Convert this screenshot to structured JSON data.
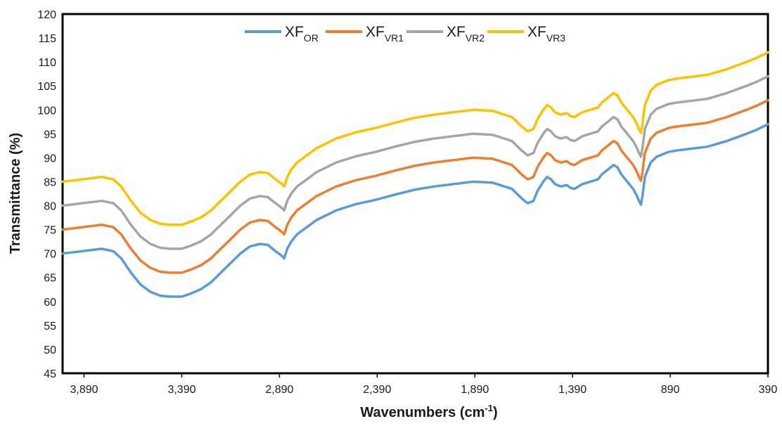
{
  "chart_data": {
    "type": "line",
    "title": "",
    "xlabel": "Wavenumbers (cm",
    "xlabel_sup": "-1",
    "xlabel_end": ")",
    "ylabel": "Transmittance (%)",
    "xlim": [
      4000,
      390
    ],
    "x_reversed": true,
    "ylim": [
      45,
      120
    ],
    "x_ticks": [
      3890,
      3390,
      2890,
      2390,
      1890,
      1390,
      890,
      390
    ],
    "x_tick_labels": [
      "3,890",
      "3,390",
      "2,890",
      "2,390",
      "1,890",
      "1,390",
      "890",
      "390"
    ],
    "y_ticks": [
      45,
      50,
      55,
      60,
      65,
      70,
      75,
      80,
      85,
      90,
      95,
      100,
      105,
      110,
      115,
      120
    ],
    "y_tick_labels": [
      "45",
      "50",
      "55",
      "60",
      "65",
      "70",
      "75",
      "80",
      "85",
      "90",
      "95",
      "100",
      "105",
      "110",
      "115",
      "120"
    ],
    "grid": false,
    "legend_position": "top-center",
    "series": [
      {
        "name": "XF",
        "name_sub": "OR",
        "color": "#5B9BD5",
        "x": [
          4000,
          3900,
          3800,
          3740,
          3700,
          3650,
          3600,
          3550,
          3500,
          3450,
          3390,
          3340,
          3290,
          3240,
          3190,
          3140,
          3090,
          3040,
          2990,
          2950,
          2910,
          2880,
          2866,
          2850,
          2830,
          2800,
          2750,
          2700,
          2600,
          2500,
          2400,
          2300,
          2200,
          2100,
          2000,
          1900,
          1800,
          1700,
          1650,
          1620,
          1590,
          1570,
          1540,
          1520,
          1500,
          1480,
          1450,
          1420,
          1400,
          1380,
          1340,
          1300,
          1260,
          1240,
          1210,
          1180,
          1160,
          1140,
          1120,
          1100,
          1080,
          1060,
          1050,
          1040,
          1032,
          1020,
          990,
          960,
          900,
          860,
          800,
          700,
          600,
          500,
          450,
          390
        ],
        "y": [
          70.0,
          70.5,
          71.0,
          70.5,
          69.0,
          66.0,
          63.5,
          62.0,
          61.2,
          61.0,
          61.0,
          61.7,
          62.6,
          64.0,
          66.0,
          68.0,
          70.0,
          71.5,
          72.0,
          71.8,
          70.5,
          69.6,
          69.0,
          71.0,
          72.5,
          74.0,
          75.5,
          77.0,
          79.0,
          80.3,
          81.2,
          82.3,
          83.3,
          84.0,
          84.5,
          85.0,
          84.8,
          83.5,
          81.5,
          80.5,
          81.0,
          83.0,
          85.0,
          86.0,
          85.5,
          84.5,
          84.0,
          84.3,
          83.7,
          83.5,
          84.5,
          85.0,
          85.5,
          86.5,
          87.5,
          88.5,
          88.0,
          86.5,
          85.5,
          84.5,
          83.5,
          82.0,
          81.0,
          80.2,
          82.0,
          86.0,
          89.0,
          90.2,
          91.2,
          91.5,
          91.8,
          92.3,
          93.5,
          95.0,
          95.8,
          97.0
        ]
      },
      {
        "name": "XF",
        "name_sub": "VR1",
        "color": "#ED7D31",
        "x": [
          4000,
          3900,
          3800,
          3740,
          3700,
          3650,
          3600,
          3550,
          3500,
          3450,
          3390,
          3340,
          3290,
          3240,
          3190,
          3140,
          3090,
          3040,
          2990,
          2950,
          2910,
          2880,
          2866,
          2850,
          2830,
          2800,
          2750,
          2700,
          2600,
          2500,
          2400,
          2300,
          2200,
          2100,
          2000,
          1900,
          1800,
          1700,
          1650,
          1620,
          1590,
          1570,
          1540,
          1520,
          1500,
          1480,
          1450,
          1420,
          1400,
          1380,
          1340,
          1300,
          1260,
          1240,
          1210,
          1180,
          1160,
          1140,
          1120,
          1100,
          1080,
          1060,
          1050,
          1040,
          1032,
          1020,
          990,
          960,
          900,
          860,
          800,
          700,
          600,
          500,
          450,
          390
        ],
        "y": [
          75.0,
          75.5,
          76.0,
          75.5,
          74.0,
          71.0,
          68.5,
          67.0,
          66.2,
          66.0,
          66.0,
          66.7,
          67.6,
          69.0,
          71.0,
          73.0,
          75.0,
          76.5,
          77.0,
          76.8,
          75.5,
          74.6,
          74.0,
          76.0,
          77.5,
          79.0,
          80.5,
          82.0,
          84.0,
          85.3,
          86.2,
          87.3,
          88.3,
          89.0,
          89.5,
          90.0,
          89.8,
          88.5,
          86.5,
          85.5,
          86.0,
          88.0,
          90.0,
          91.0,
          90.5,
          89.5,
          89.0,
          89.3,
          88.7,
          88.5,
          89.5,
          90.0,
          90.5,
          91.5,
          92.5,
          93.5,
          93.0,
          91.5,
          90.5,
          89.5,
          88.5,
          87.0,
          86.0,
          85.2,
          87.0,
          91.0,
          94.0,
          95.2,
          96.2,
          96.5,
          96.8,
          97.3,
          98.5,
          100.0,
          100.8,
          102.0
        ]
      },
      {
        "name": "XF",
        "name_sub": "VR2",
        "color": "#A5A5A5",
        "x": [
          4000,
          3900,
          3800,
          3740,
          3700,
          3650,
          3600,
          3550,
          3500,
          3450,
          3390,
          3340,
          3290,
          3240,
          3190,
          3140,
          3090,
          3040,
          2990,
          2950,
          2910,
          2880,
          2866,
          2850,
          2830,
          2800,
          2750,
          2700,
          2600,
          2500,
          2400,
          2300,
          2200,
          2100,
          2000,
          1900,
          1800,
          1700,
          1650,
          1620,
          1590,
          1570,
          1540,
          1520,
          1500,
          1480,
          1450,
          1420,
          1400,
          1380,
          1340,
          1300,
          1260,
          1240,
          1210,
          1180,
          1160,
          1140,
          1120,
          1100,
          1080,
          1060,
          1050,
          1040,
          1032,
          1020,
          990,
          960,
          900,
          860,
          800,
          700,
          600,
          500,
          450,
          390
        ],
        "y": [
          80.0,
          80.5,
          81.0,
          80.5,
          79.0,
          76.0,
          73.5,
          72.0,
          71.2,
          71.0,
          71.0,
          71.7,
          72.6,
          74.0,
          76.0,
          78.0,
          80.0,
          81.5,
          82.0,
          81.8,
          80.5,
          79.6,
          79.0,
          81.0,
          82.5,
          84.0,
          85.5,
          87.0,
          89.0,
          90.3,
          91.2,
          92.3,
          93.3,
          94.0,
          94.5,
          95.0,
          94.8,
          93.5,
          91.5,
          90.5,
          91.0,
          93.0,
          95.0,
          96.0,
          95.5,
          94.5,
          94.0,
          94.3,
          93.7,
          93.5,
          94.5,
          95.0,
          95.5,
          96.5,
          97.5,
          98.5,
          98.0,
          96.5,
          95.5,
          94.5,
          93.5,
          92.0,
          91.0,
          90.2,
          92.0,
          96.0,
          99.0,
          100.2,
          101.2,
          101.5,
          101.8,
          102.3,
          103.5,
          105.0,
          105.8,
          107.0
        ]
      },
      {
        "name": "XF",
        "name_sub": "VR3",
        "color": "#FFC000",
        "x": [
          4000,
          3900,
          3800,
          3740,
          3700,
          3650,
          3600,
          3550,
          3500,
          3450,
          3390,
          3340,
          3290,
          3240,
          3190,
          3140,
          3090,
          3040,
          2990,
          2950,
          2910,
          2880,
          2866,
          2850,
          2830,
          2800,
          2750,
          2700,
          2600,
          2500,
          2400,
          2300,
          2200,
          2100,
          2000,
          1900,
          1800,
          1700,
          1650,
          1620,
          1590,
          1570,
          1540,
          1520,
          1500,
          1480,
          1450,
          1420,
          1400,
          1380,
          1340,
          1300,
          1260,
          1240,
          1210,
          1180,
          1160,
          1140,
          1120,
          1100,
          1080,
          1060,
          1050,
          1040,
          1032,
          1020,
          990,
          960,
          900,
          860,
          800,
          700,
          600,
          500,
          450,
          390
        ],
        "y": [
          85.0,
          85.5,
          86.0,
          85.5,
          84.0,
          81.0,
          78.5,
          77.0,
          76.2,
          76.0,
          76.0,
          76.7,
          77.6,
          79.0,
          81.0,
          83.0,
          85.0,
          86.5,
          87.0,
          86.8,
          85.5,
          84.6,
          84.0,
          86.0,
          87.5,
          89.0,
          90.5,
          92.0,
          94.0,
          95.3,
          96.2,
          97.3,
          98.3,
          99.0,
          99.5,
          100.0,
          99.8,
          98.5,
          96.5,
          95.5,
          96.0,
          98.0,
          100.0,
          101.0,
          100.5,
          99.5,
          99.0,
          99.3,
          98.7,
          98.5,
          99.5,
          100.0,
          100.5,
          101.5,
          102.5,
          103.5,
          103.0,
          101.5,
          100.5,
          99.5,
          98.5,
          97.0,
          96.0,
          95.2,
          97.0,
          101.0,
          104.0,
          105.2,
          106.2,
          106.5,
          106.8,
          107.3,
          108.5,
          110.0,
          110.8,
          112.0
        ]
      }
    ]
  }
}
